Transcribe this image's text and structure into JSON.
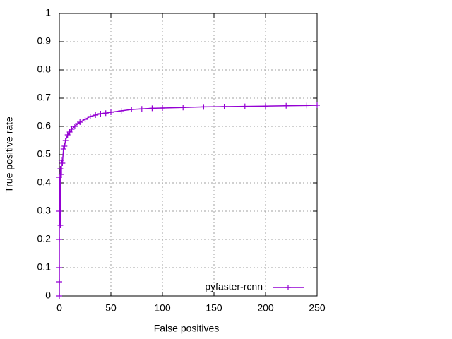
{
  "chart_data": {
    "type": "line",
    "xlabel": "False positives",
    "ylabel": "True positive rate",
    "xlim": [
      0,
      250
    ],
    "xticks": [
      0,
      50,
      100,
      150,
      200,
      250
    ],
    "ylim": [
      0,
      1
    ],
    "yticks": [
      0,
      0.1,
      0.2,
      0.3,
      0.4,
      0.5,
      0.6,
      0.7,
      0.8,
      0.9,
      1
    ],
    "grid": true,
    "legend": "bottom right",
    "series": [
      {
        "name": "pyfaster-rcnn",
        "color": "#9400d3",
        "x": [
          0,
          0,
          0,
          0,
          0,
          0,
          1,
          1,
          2,
          2,
          3,
          4,
          5,
          6,
          8,
          10,
          12,
          15,
          18,
          20,
          25,
          30,
          35,
          40,
          45,
          50,
          60,
          70,
          80,
          90,
          100,
          120,
          140,
          160,
          180,
          200,
          220,
          240,
          250
        ],
        "values": [
          0,
          0.05,
          0.1,
          0.2,
          0.3,
          0.42,
          0.25,
          0.45,
          0.43,
          0.48,
          0.47,
          0.52,
          0.53,
          0.55,
          0.57,
          0.58,
          0.59,
          0.6,
          0.61,
          0.615,
          0.625,
          0.635,
          0.64,
          0.645,
          0.647,
          0.65,
          0.655,
          0.66,
          0.662,
          0.664,
          0.665,
          0.667,
          0.669,
          0.67,
          0.671,
          0.672,
          0.673,
          0.674,
          0.675
        ]
      }
    ]
  }
}
